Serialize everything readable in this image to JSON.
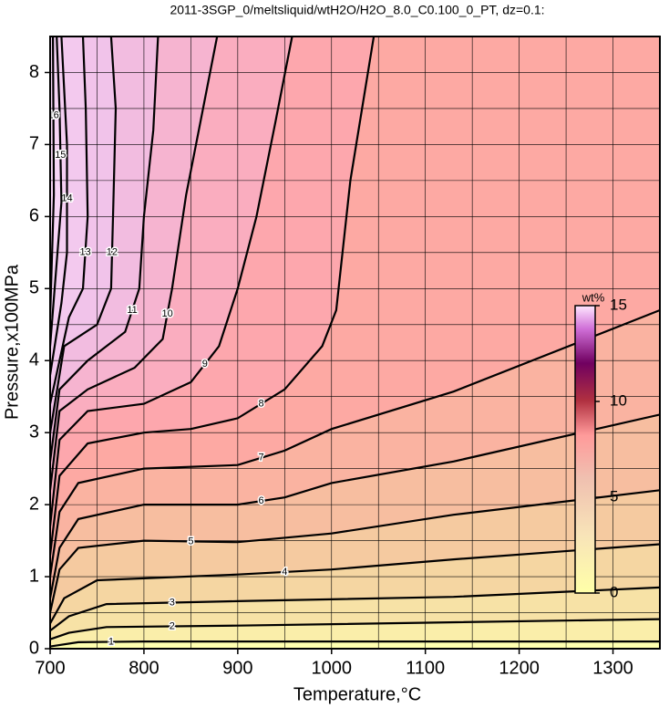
{
  "chart_data": {
    "type": "contour",
    "title": "2011-3SGP_0/meltsliquid/wtH2O/H2O_8.0_C0.100_0_PT, dz=0.1:",
    "x_label": "Temperature,°C",
    "y_label": "Pressure,x100MPa",
    "xlim": [
      700,
      1350
    ],
    "ylim": [
      0,
      8.5
    ],
    "xticks": [
      700,
      800,
      900,
      1000,
      1100,
      1200,
      1300
    ],
    "yticks": [
      0,
      1,
      2,
      3,
      4,
      5,
      6,
      7,
      8
    ],
    "xgrid": [
      700,
      750,
      800,
      850,
      900,
      950,
      1000,
      1050,
      1100,
      1150,
      1200,
      1250,
      1300,
      1350
    ],
    "ygrid": [
      0,
      0.5,
      1,
      1.5,
      2,
      2.5,
      3,
      3.5,
      4,
      4.5,
      5,
      5.5,
      6,
      6.5,
      7,
      7.5,
      8,
      8.5
    ],
    "grid": true,
    "contours": [
      {
        "level": 1,
        "x": [
          700,
          730,
          800,
          1350
        ],
        "y": [
          0.03,
          0.09,
          0.1,
          0.1
        ]
      },
      {
        "level": 2,
        "x": [
          700,
          720,
          760,
          900,
          1350
        ],
        "y": [
          0.13,
          0.22,
          0.3,
          0.32,
          0.41
        ]
      },
      {
        "level": 3,
        "x": [
          700,
          720,
          760,
          900,
          1130,
          1350
        ],
        "y": [
          0.25,
          0.45,
          0.62,
          0.66,
          0.72,
          0.85
        ]
      },
      {
        "level": 4,
        "x": [
          700,
          715,
          750,
          900,
          1000,
          1130,
          1350
        ],
        "y": [
          0.35,
          0.7,
          0.95,
          1.03,
          1.1,
          1.24,
          1.45
        ]
      },
      {
        "level": 5,
        "x": [
          700,
          710,
          730,
          800,
          900,
          1000,
          1130,
          1350
        ],
        "y": [
          0.5,
          1.1,
          1.4,
          1.5,
          1.48,
          1.6,
          1.86,
          2.2
        ]
      },
      {
        "level": 6,
        "x": [
          700,
          710,
          730,
          800,
          900,
          950,
          1000,
          1130,
          1350
        ],
        "y": [
          0.7,
          1.4,
          1.8,
          2.0,
          2.0,
          2.1,
          2.3,
          2.6,
          3.25
        ]
      },
      {
        "level": 7,
        "x": [
          700,
          710,
          730,
          800,
          900,
          950,
          1000,
          1130,
          1350
        ],
        "y": [
          1.0,
          1.9,
          2.3,
          2.5,
          2.55,
          2.75,
          3.05,
          3.57,
          4.7
        ]
      },
      {
        "level": 8,
        "x": [
          700,
          710,
          740,
          800,
          850,
          900,
          950,
          990,
          1005,
          1020,
          1045
        ],
        "y": [
          1.3,
          2.4,
          2.85,
          3.0,
          3.05,
          3.2,
          3.6,
          4.2,
          4.7,
          6.5,
          8.5
        ]
      },
      {
        "level": 9,
        "x": [
          700,
          710,
          740,
          800,
          850,
          880,
          900,
          920,
          940,
          958
        ],
        "y": [
          1.7,
          2.9,
          3.3,
          3.4,
          3.7,
          4.2,
          5.0,
          6.0,
          7.3,
          8.5
        ]
      },
      {
        "level": 10,
        "x": [
          700,
          710,
          740,
          790,
          820,
          830,
          845,
          860,
          878
        ],
        "y": [
          2.2,
          3.3,
          3.6,
          3.9,
          4.3,
          5.0,
          6.3,
          7.3,
          8.5
        ]
      },
      {
        "level": 11,
        "x": [
          700,
          710,
          740,
          780,
          795,
          800,
          810,
          815
        ],
        "y": [
          2.6,
          3.6,
          4.0,
          4.4,
          5.0,
          6.0,
          7.2,
          8.5
        ]
      },
      {
        "level": 12,
        "x": [
          700,
          715,
          750,
          765,
          767,
          770,
          765
        ],
        "y": [
          3.0,
          4.2,
          4.5,
          5.0,
          6.0,
          7.5,
          8.5
        ]
      },
      {
        "level": 13,
        "x": [
          700,
          720,
          735,
          740,
          738,
          735
        ],
        "y": [
          3.4,
          4.6,
          5.0,
          6.0,
          7.5,
          8.5
        ]
      },
      {
        "level": 14,
        "x": [
          700,
          712,
          718,
          718,
          712
        ],
        "y": [
          3.8,
          4.8,
          5.5,
          7.0,
          8.5
        ]
      },
      {
        "level": 15,
        "x": [
          700,
          706,
          712,
          710,
          707
        ],
        "y": [
          4.2,
          5.2,
          6.2,
          7.5,
          8.5
        ]
      },
      {
        "level": 16,
        "x": [
          700,
          704,
          703
        ],
        "y": [
          4.6,
          6.3,
          8.5
        ]
      }
    ],
    "colorbar": {
      "label": "wt%",
      "lim": [
        0,
        15
      ],
      "ticks": [
        0,
        5,
        10,
        15
      ]
    }
  }
}
